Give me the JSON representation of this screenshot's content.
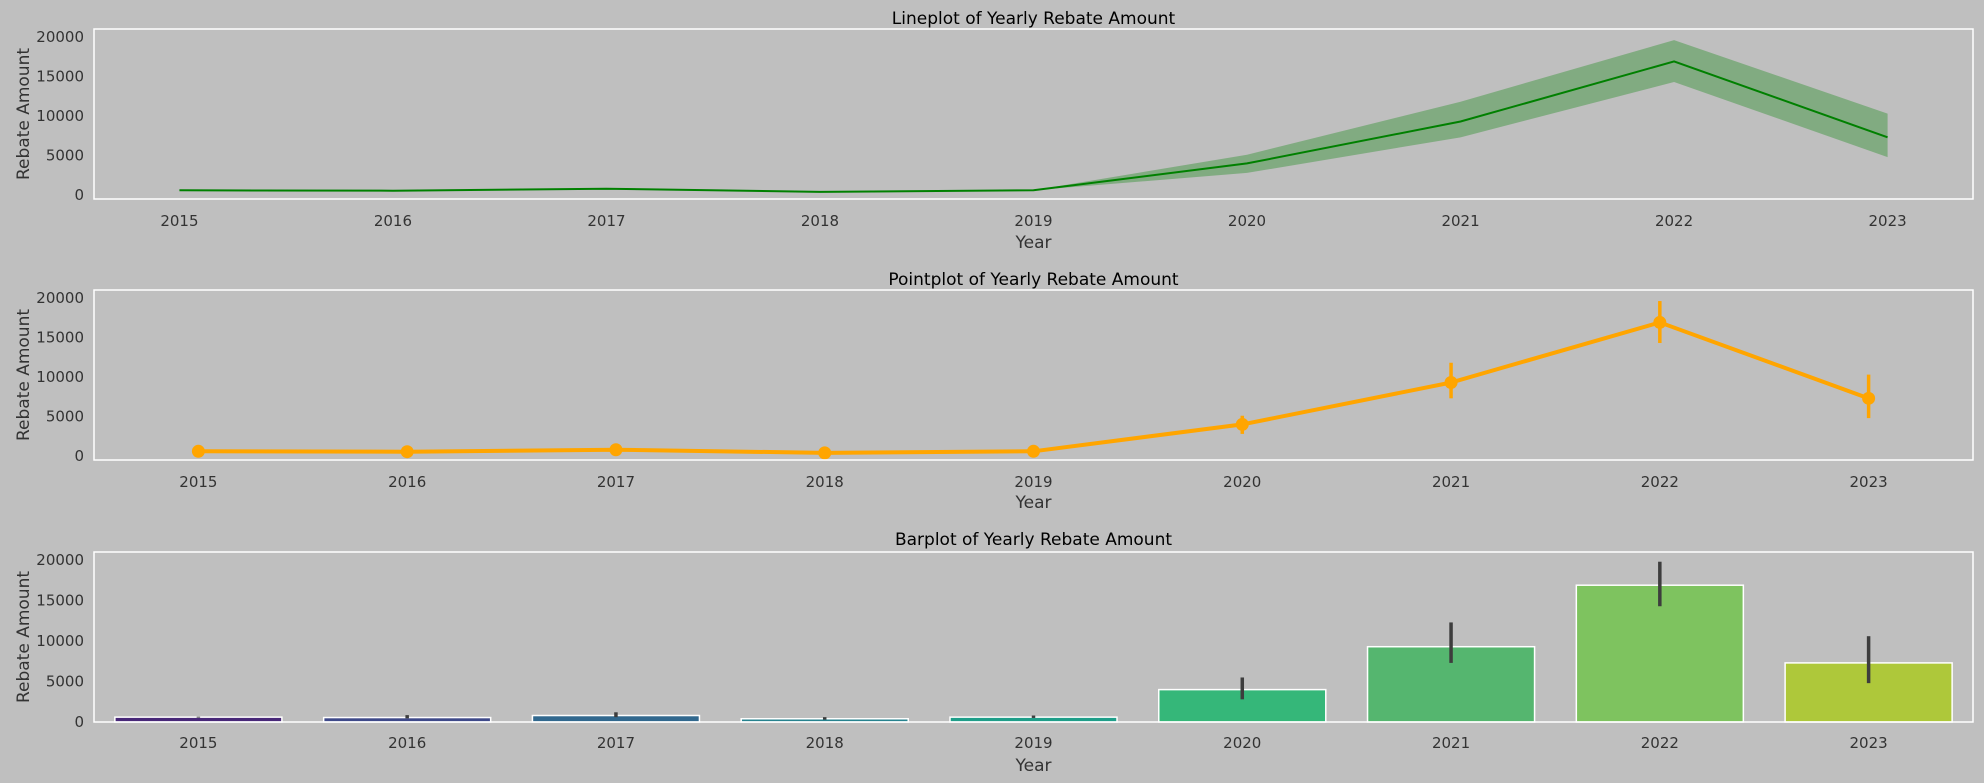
{
  "chart_data": [
    {
      "type": "line",
      "title": "Lineplot of Yearly Rebate Amount",
      "xlabel": "Year",
      "ylabel": "Rebate Amount",
      "ylim": [
        -500,
        21000
      ],
      "yticks": [
        "0",
        "5000",
        "10000",
        "15000",
        "20000"
      ],
      "categories": [
        "2015",
        "2016",
        "2017",
        "2018",
        "2019",
        "2020",
        "2021",
        "2022",
        "2023"
      ],
      "values": [
        600,
        550,
        800,
        400,
        600,
        4000,
        9300,
        16900,
        7300
      ],
      "ci_low": [
        600,
        550,
        800,
        400,
        600,
        2800,
        7300,
        14300,
        4800
      ],
      "ci_high": [
        600,
        550,
        800,
        400,
        600,
        5100,
        11800,
        19600,
        10300
      ],
      "color": "#008000",
      "band_color": "#4f9a4f"
    },
    {
      "type": "line",
      "title": "Pointplot of Yearly Rebate Amount",
      "xlabel": "Year",
      "ylabel": "Rebate Amount",
      "ylim": [
        -500,
        21000
      ],
      "yticks": [
        "0",
        "5000",
        "10000",
        "15000",
        "20000"
      ],
      "categories": [
        "2015",
        "2016",
        "2017",
        "2018",
        "2019",
        "2020",
        "2021",
        "2022",
        "2023"
      ],
      "values": [
        600,
        550,
        800,
        400,
        600,
        4000,
        9300,
        16900,
        7300
      ],
      "ci_low": [
        600,
        550,
        800,
        400,
        600,
        2800,
        7300,
        14300,
        4800
      ],
      "ci_high": [
        600,
        550,
        800,
        400,
        600,
        5100,
        11800,
        19600,
        10300
      ],
      "color": "#ffa500"
    },
    {
      "type": "bar",
      "title": "Barplot of Yearly Rebate Amount",
      "xlabel": "Year",
      "ylabel": "Rebate Amount",
      "ylim": [
        0,
        21000
      ],
      "yticks": [
        "0",
        "5000",
        "10000",
        "15000",
        "20000"
      ],
      "categories": [
        "2015",
        "2016",
        "2017",
        "2018",
        "2019",
        "2020",
        "2021",
        "2022",
        "2023"
      ],
      "values": [
        600,
        550,
        800,
        400,
        600,
        4000,
        9300,
        16900,
        7300
      ],
      "ci_low": [
        550,
        450,
        600,
        300,
        500,
        2800,
        7300,
        14300,
        4800
      ],
      "ci_high": [
        650,
        850,
        1200,
        600,
        800,
        5500,
        12300,
        19800,
        10600
      ],
      "colors": [
        "#482878",
        "#3e4989",
        "#31688e",
        "#26828e",
        "#1f9e89",
        "#35b779",
        "#55b66f",
        "#7ec35f",
        "#aec83a"
      ],
      "err_color": "#3d3d3d"
    }
  ]
}
